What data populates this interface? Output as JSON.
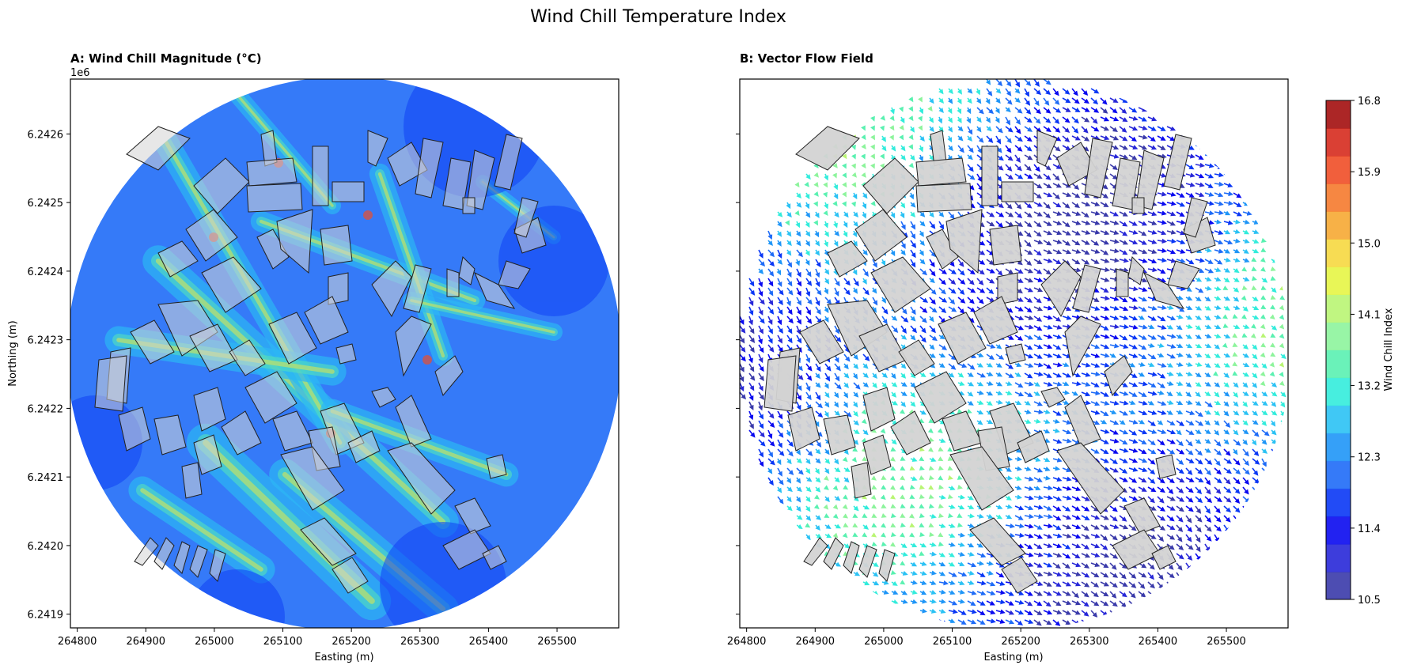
{
  "figure": {
    "suptitle": "Wind Chill Temperature Index"
  },
  "colors": {
    "ramp": [
      "#3a3aaa",
      "#2828d8",
      "#0a0af0",
      "#0a37f5",
      "#1f6cf7",
      "#1f96f7",
      "#2bc2f4",
      "#33ecdc",
      "#5af1b1",
      "#8df49c",
      "#b9f573",
      "#e6f545",
      "#f6d840",
      "#f6a833",
      "#f57a2d",
      "#f04e27",
      "#d62b1e",
      "#a30e0e"
    ],
    "building_fill": "#d3d3d3",
    "building_edge": "#222222",
    "frame": "#000000"
  },
  "chart_data": [
    {
      "type": "heatmap",
      "panel": "A",
      "title": "A: Wind Chill Magnitude (°C)",
      "xlabel": "Easting (m)",
      "ylabel": "Northing (m)",
      "y_offset_label": "1e6",
      "xlim": [
        264790,
        265590
      ],
      "ylim": [
        6241880,
        6242680
      ],
      "x_ticks": [
        264800,
        264900,
        265000,
        265100,
        265200,
        265300,
        265400,
        265500
      ],
      "y_ticks": [
        6.2419,
        6.242,
        6.2421,
        6.2422,
        6.2423,
        6.2424,
        6.2425,
        6.2426
      ],
      "domain_shape": "circle",
      "value_range": [
        10.5,
        16.8
      ]
    },
    {
      "type": "quiver",
      "panel": "B",
      "title": "B: Vector Flow Field",
      "xlabel": "Easting (m)",
      "xlim": [
        264790,
        265590
      ],
      "ylim": [
        6241880,
        6242680
      ],
      "x_ticks": [
        264800,
        264900,
        265000,
        265100,
        265200,
        265300,
        265400,
        265500
      ],
      "shared_y": true,
      "domain_shape": "circle",
      "colorbar": {
        "label": "Wind Chill Index",
        "ticks": [
          10.5,
          11.4,
          12.3,
          13.2,
          14.1,
          15.0,
          15.9,
          16.8
        ],
        "tick_labels": [
          "10.5",
          "11.4",
          "12.3",
          "13.2",
          "14.1",
          "15.0",
          "15.9",
          "16.8"
        ],
        "range": [
          10.5,
          16.8
        ],
        "levels": 18
      }
    }
  ]
}
